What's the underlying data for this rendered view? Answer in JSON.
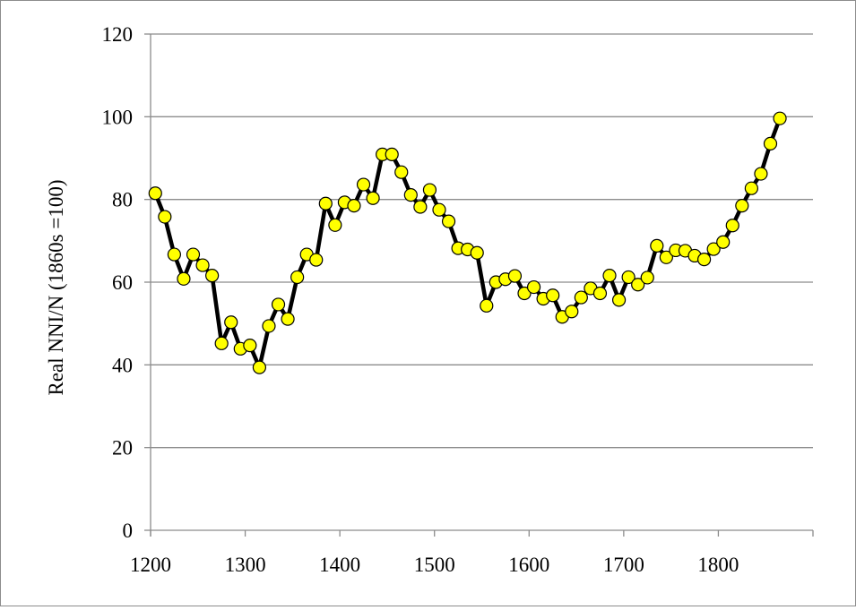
{
  "chart_data": {
    "type": "line",
    "title": "",
    "xlabel": "",
    "ylabel": "Real NNI/N (1860s =100)",
    "xlim": [
      1200,
      1900
    ],
    "ylim": [
      0,
      120
    ],
    "x_ticks": [
      1200,
      1300,
      1400,
      1500,
      1600,
      1700,
      1800
    ],
    "y_ticks": [
      0,
      20,
      40,
      60,
      80,
      100,
      120
    ],
    "grid": "horizontal",
    "legend": "none",
    "colors": {
      "line": "#000000",
      "marker_fill": "#ffff00",
      "marker_edge": "#000000",
      "grid": "#8c8c8c"
    },
    "series": [
      {
        "x": [
          1205,
          1215,
          1225,
          1235,
          1245,
          1255,
          1265,
          1275,
          1285,
          1295,
          1305,
          1315,
          1325,
          1335,
          1345,
          1355,
          1365,
          1375,
          1385,
          1395,
          1405,
          1415,
          1425,
          1435,
          1445,
          1455,
          1465,
          1475,
          1485,
          1495,
          1505,
          1515,
          1525,
          1535,
          1545,
          1555,
          1565,
          1575,
          1585,
          1595,
          1605,
          1615,
          1625,
          1635,
          1645,
          1655,
          1665,
          1675,
          1685,
          1695,
          1705,
          1715,
          1725,
          1735,
          1745,
          1755,
          1765,
          1775,
          1785,
          1795,
          1805,
          1815,
          1825,
          1835,
          1845,
          1855,
          1865
        ],
        "values": [
          81.5,
          75.8,
          66.7,
          60.8,
          66.7,
          64.1,
          61.6,
          45.2,
          50.3,
          43.9,
          44.7,
          39.4,
          49.4,
          54.6,
          51.1,
          61.2,
          66.7,
          65.4,
          79.0,
          73.8,
          79.3,
          78.5,
          83.6,
          80.3,
          90.9,
          90.9,
          86.6,
          81.1,
          78.2,
          82.3,
          77.5,
          74.7,
          68.2,
          67.9,
          67.1,
          54.3,
          60.0,
          60.7,
          61.5,
          57.3,
          58.8,
          56.0,
          56.8,
          51.6,
          52.9,
          56.3,
          58.5,
          57.3,
          61.6,
          55.7,
          61.2,
          59.4,
          61.1,
          68.8,
          66.0,
          67.7,
          67.6,
          66.4,
          65.5,
          68.0,
          69.7,
          73.7,
          78.5,
          82.7,
          86.2,
          93.5,
          99.6
        ]
      }
    ]
  }
}
